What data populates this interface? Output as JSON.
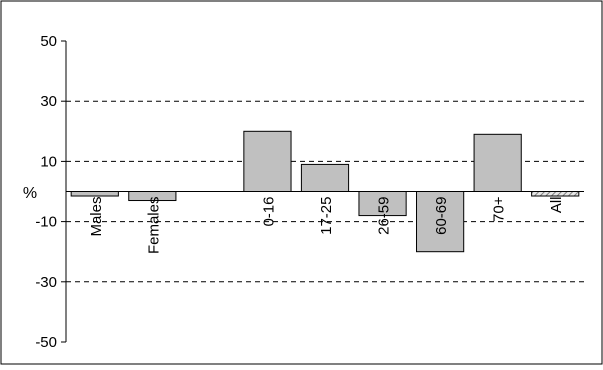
{
  "chart_data": {
    "type": "bar",
    "ylabel": "%",
    "ylim": [
      -50,
      50
    ],
    "yticks": [
      50,
      30,
      10,
      -10,
      -30,
      -50
    ],
    "grid": "dashed horizontal at ±10, ±30",
    "categories": [
      "Males",
      "Females",
      "",
      "0-16",
      "17-25",
      "26-59",
      "60-69",
      "70+",
      "All"
    ],
    "values": [
      -1.5,
      -3,
      null,
      20,
      9,
      -8,
      -20,
      19,
      -1.5
    ],
    "styles": [
      "solid",
      "solid",
      "none",
      "solid",
      "solid",
      "solid",
      "solid",
      "solid",
      "hatched"
    ],
    "colors": {
      "bar": "#c0c0c0",
      "stroke": "#000000",
      "grid": "#000000",
      "hatch_fg": "#808080",
      "hatch_bg": "#e6e6e6"
    }
  }
}
